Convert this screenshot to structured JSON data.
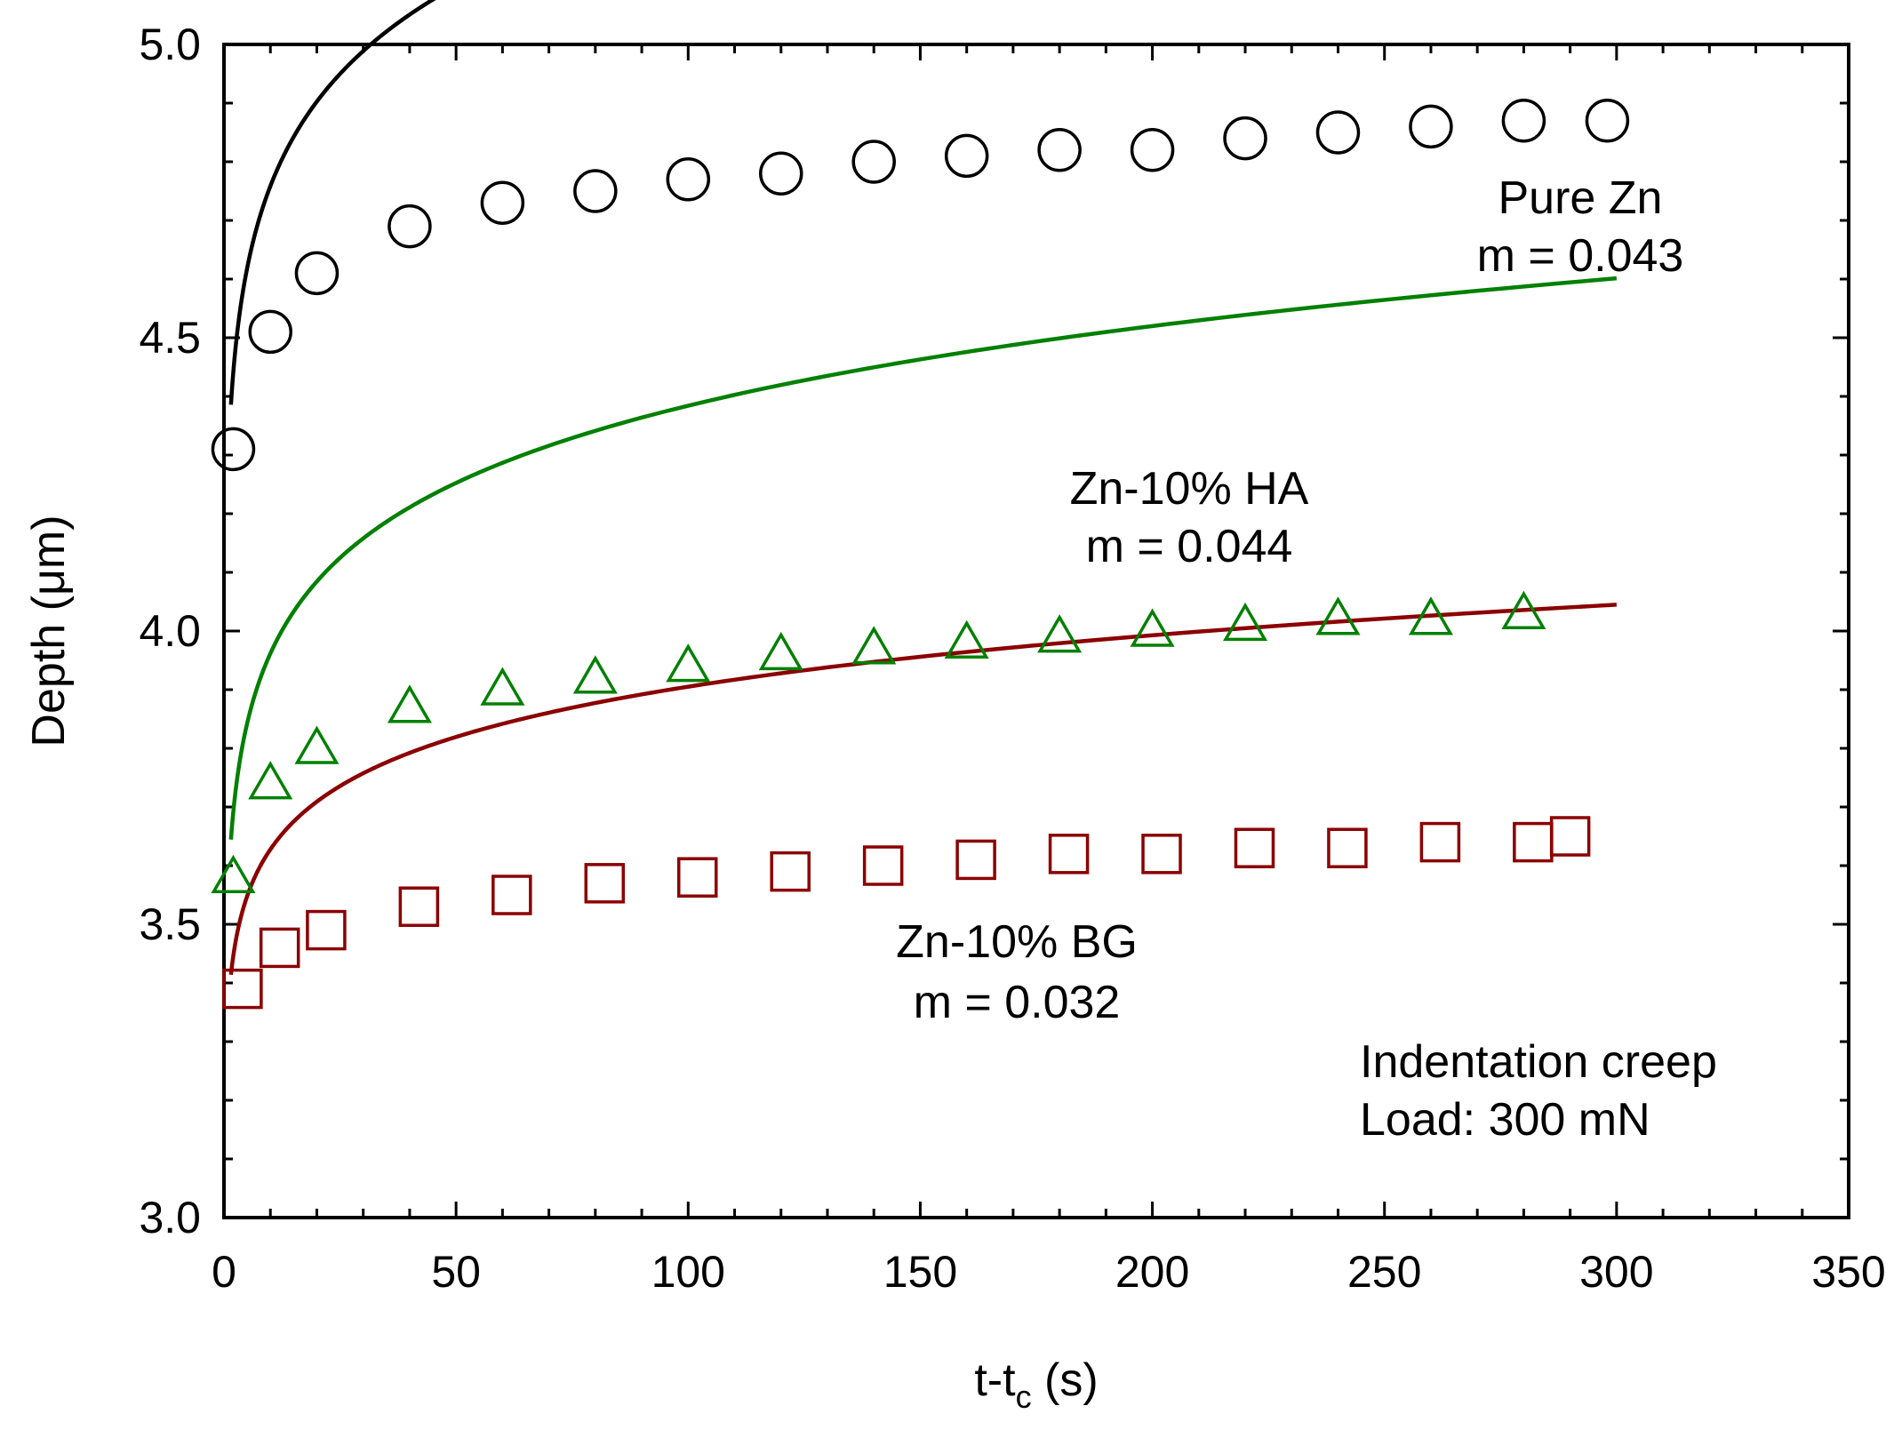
{
  "chart_data": {
    "type": "scatter",
    "xlabel_main": "t-t",
    "xlabel_sub": "c",
    "xlabel_unit": " (s)",
    "ylabel": "Depth (μm)",
    "xlim": [
      0,
      350
    ],
    "ylim": [
      3.0,
      5.0
    ],
    "xticks": [
      0,
      50,
      100,
      150,
      200,
      250,
      300,
      350
    ],
    "yticks": [
      3.0,
      3.5,
      4.0,
      4.5,
      5.0
    ],
    "ytick_labels": [
      "3.0",
      "3.5",
      "4.0",
      "4.5",
      "5.0"
    ],
    "series": [
      {
        "name": "Pure Zn",
        "m_label": "m = 0.043",
        "marker": "circle",
        "color": "#000000",
        "x": [
          2,
          10,
          20,
          40,
          60,
          80,
          100,
          120,
          140,
          160,
          180,
          200,
          220,
          240,
          260,
          280,
          298
        ],
        "y": [
          4.31,
          4.51,
          4.61,
          4.69,
          4.73,
          4.75,
          4.77,
          4.78,
          4.8,
          4.81,
          4.82,
          4.82,
          4.84,
          4.85,
          4.86,
          4.87,
          4.87
        ],
        "fit": {
          "a": 4.31,
          "b": 0.043,
          "x0": 1.5,
          "x1": 300
        }
      },
      {
        "name": "Zn-10% HA",
        "m_label": "m = 0.044",
        "marker": "triangle",
        "color": "#008000",
        "x": [
          2,
          10,
          20,
          40,
          60,
          80,
          100,
          120,
          140,
          160,
          180,
          200,
          220,
          240,
          260,
          280
        ],
        "y": [
          3.58,
          3.74,
          3.8,
          3.87,
          3.9,
          3.92,
          3.94,
          3.96,
          3.97,
          3.98,
          3.99,
          4.0,
          4.01,
          4.02,
          4.02,
          4.03
        ],
        "fit": {
          "a": 3.58,
          "b": 0.044,
          "x0": 1.5,
          "x1": 300
        }
      },
      {
        "name": "Zn-10% BG",
        "m_label": "m = 0.032",
        "marker": "square",
        "color": "#8B0000",
        "x": [
          4,
          12,
          22,
          42,
          62,
          82,
          102,
          122,
          142,
          162,
          182,
          202,
          222,
          242,
          262,
          282,
          290
        ],
        "y": [
          3.39,
          3.46,
          3.49,
          3.53,
          3.55,
          3.57,
          3.58,
          3.59,
          3.6,
          3.61,
          3.62,
          3.62,
          3.63,
          3.63,
          3.64,
          3.64,
          3.65
        ],
        "fit": {
          "a": 3.37,
          "b": 0.032,
          "x0": 1.5,
          "x1": 300
        }
      }
    ],
    "annotation": [
      "Indentation creep",
      "Load: 300 mN"
    ]
  }
}
